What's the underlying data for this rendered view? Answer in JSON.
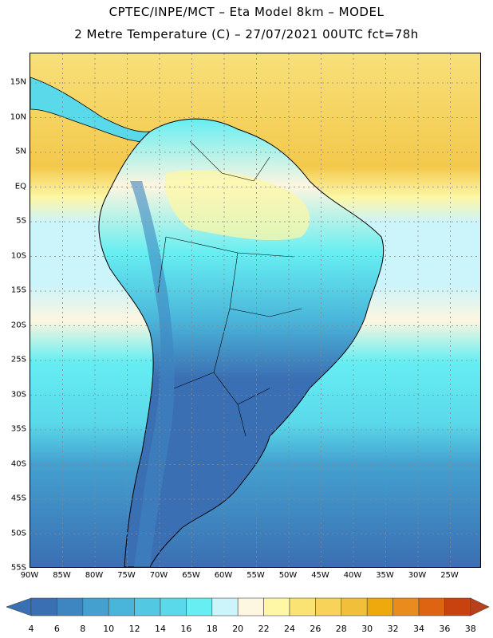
{
  "title_line1": "CPTEC/INPE/MCT –  Eta Model 8km – MODEL",
  "title_line2": "2 Metre Temperature (C) – 27/07/2021 00UTC fct=78h",
  "lat_labels": [
    "15N",
    "10N",
    "5N",
    "EQ",
    "5S",
    "10S",
    "15S",
    "20S",
    "25S",
    "30S",
    "35S",
    "40S",
    "45S",
    "50S",
    "55S"
  ],
  "lon_labels": [
    "90W",
    "85W",
    "80W",
    "75W",
    "70W",
    "65W",
    "60W",
    "55W",
    "50W",
    "45W",
    "40W",
    "35W",
    "30W",
    "25W"
  ],
  "colorbar": {
    "ticks": [
      "4",
      "6",
      "8",
      "10",
      "12",
      "14",
      "16",
      "18",
      "20",
      "22",
      "24",
      "26",
      "28",
      "30",
      "32",
      "34",
      "36",
      "38"
    ],
    "colors": [
      "#3b6fb3",
      "#3e86c2",
      "#44a0cf",
      "#4ab5da",
      "#52c8e2",
      "#5ad9ea",
      "#66eef2",
      "#cbf4fb",
      "#fdf6e0",
      "#fdf7a6",
      "#fbe373",
      "#f8d35a",
      "#f2bf3a",
      "#efa90c",
      "#ea8b1d",
      "#de6412",
      "#c7420f"
    ],
    "low_color": "#3b6fb3",
    "high_color": "#b8401a"
  },
  "map_colors": {
    "ocean_north": "#f3c94c",
    "ocean_equator": "#cbf4fb",
    "ocean_mid": "#5ad9ea",
    "ocean_south": "#3e86c2",
    "land_cold": "#3b6fb3",
    "land_cool": "#4ab5da",
    "land_warm": "#fdf6e0",
    "grid": "#888888",
    "border": "#000000"
  }
}
